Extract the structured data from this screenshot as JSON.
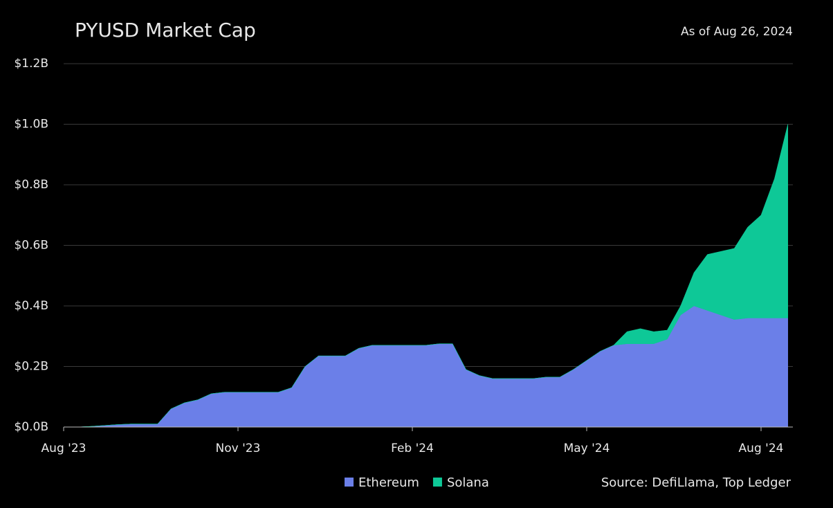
{
  "chart_data": {
    "type": "stacked-area",
    "title": "PYUSD Market Cap",
    "subtitle": "As of Aug 26, 2024",
    "source": "Source: DefiLlama, Top Ledger",
    "categories": [
      "Aug '23",
      null,
      null,
      null,
      null,
      null,
      null,
      null,
      null,
      null,
      null,
      null,
      null,
      "Nov '23",
      null,
      null,
      null,
      null,
      null,
      null,
      null,
      null,
      null,
      null,
      null,
      null,
      "Feb '24",
      null,
      null,
      null,
      null,
      null,
      null,
      null,
      null,
      null,
      null,
      null,
      null,
      "May '24",
      null,
      null,
      null,
      null,
      null,
      null,
      null,
      null,
      null,
      null,
      null,
      null,
      "Aug '24",
      null,
      null
    ],
    "series": [
      {
        "name": "Ethereum",
        "color": "#6b7fe8",
        "values": [
          0,
          0,
          0.002,
          0.005,
          0.008,
          0.01,
          0.01,
          0.01,
          0.06,
          0.08,
          0.09,
          0.11,
          0.115,
          0.115,
          0.115,
          0.115,
          0.115,
          0.13,
          0.2,
          0.235,
          0.235,
          0.235,
          0.26,
          0.27,
          0.27,
          0.27,
          0.27,
          0.27,
          0.275,
          0.275,
          0.19,
          0.17,
          0.16,
          0.16,
          0.16,
          0.16,
          0.165,
          0.165,
          0.19,
          0.22,
          0.25,
          0.27,
          0.275,
          0.275,
          0.275,
          0.29,
          0.37,
          0.4,
          0.385,
          0.37,
          0.355,
          0.36,
          0.36,
          0.36,
          0.36
        ]
      },
      {
        "name": "Solana",
        "color": "#0ec897",
        "values": [
          0,
          0,
          0,
          0,
          0,
          0,
          0,
          0,
          0,
          0,
          0,
          0,
          0,
          0,
          0,
          0,
          0,
          0,
          0,
          0,
          0,
          0,
          0,
          0,
          0,
          0,
          0,
          0,
          0,
          0,
          0,
          0,
          0,
          0,
          0,
          0,
          0,
          0,
          0,
          0,
          0,
          0,
          0.04,
          0.05,
          0.04,
          0.03,
          0.03,
          0.11,
          0.185,
          0.21,
          0.235,
          0.3,
          0.34,
          0.46,
          0.64
        ]
      }
    ],
    "ylim": [
      0,
      1.2
    ],
    "yticks": [
      {
        "value": 0,
        "label": "$0.0B"
      },
      {
        "value": 0.2,
        "label": "$0.2B"
      },
      {
        "value": 0.4,
        "label": "$0.4B"
      },
      {
        "value": 0.6,
        "label": "$0.6B"
      },
      {
        "value": 0.8,
        "label": "$0.8B"
      },
      {
        "value": 1.0,
        "label": "$1.0B"
      },
      {
        "value": 1.2,
        "label": "$1.2B"
      }
    ],
    "grid": true,
    "legend": "bottom"
  }
}
